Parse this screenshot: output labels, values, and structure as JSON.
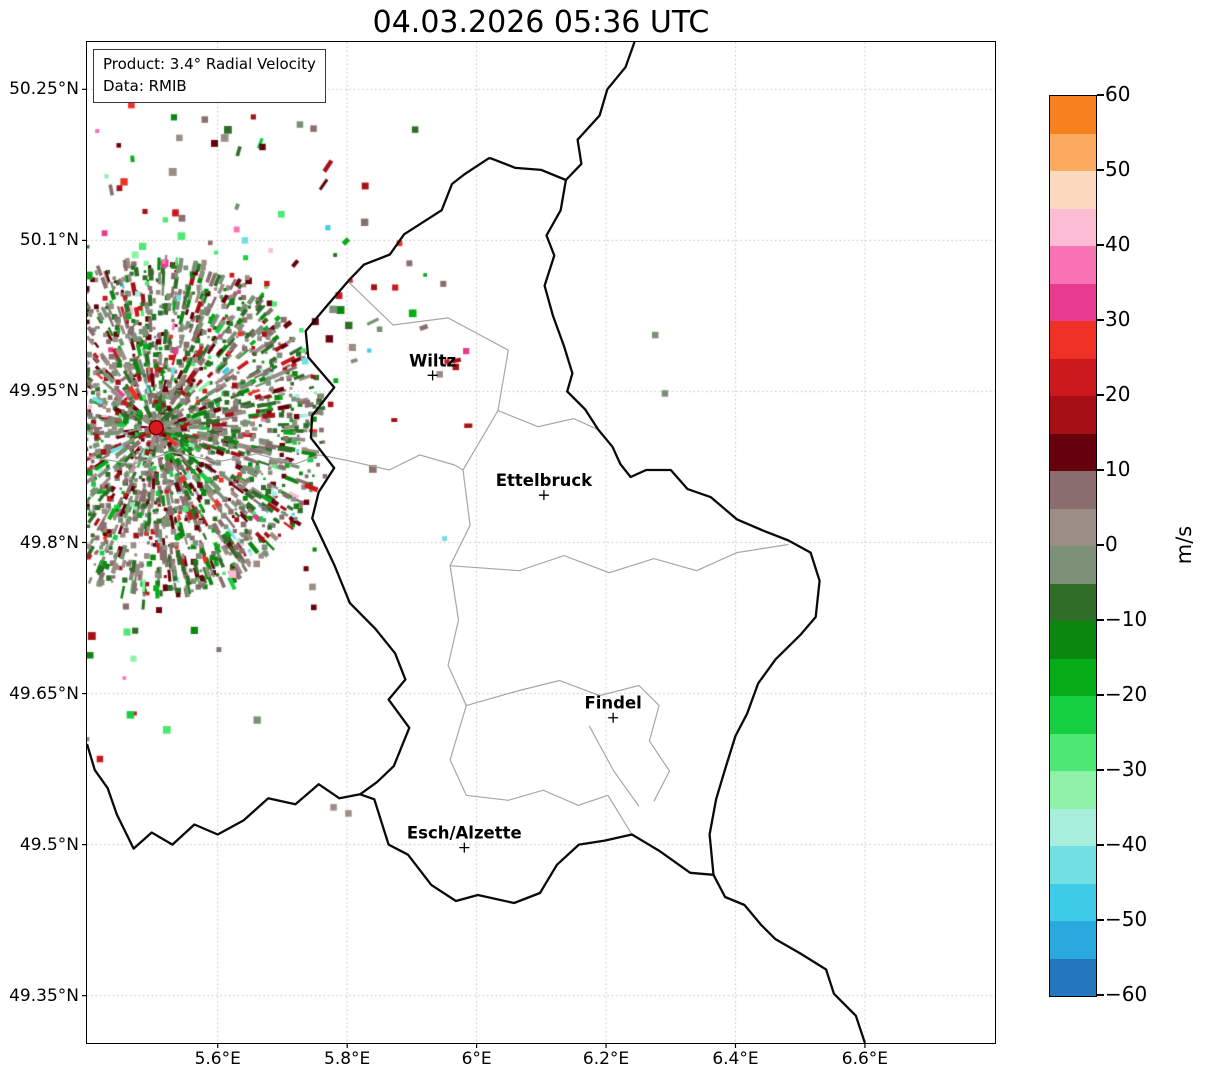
{
  "title": "04.03.2026 05:36 UTC",
  "info_box": {
    "line1": "Product: 3.4° Radial Velocity",
    "line2": "Data: RMIB"
  },
  "chart_data": {
    "type": "heatmap",
    "title": "04.03.2026 05:36 UTC",
    "product": "3.4° Radial Velocity",
    "data_source": "RMIB",
    "units": "m/s",
    "grid": true,
    "lon_range": [
      5.398,
      6.801
    ],
    "lat_range": [
      49.303,
      50.297
    ],
    "x_ticks": {
      "values": [
        5.6,
        5.8,
        6.0,
        6.2,
        6.4,
        6.6
      ],
      "labels": [
        "5.6°E",
        "5.8°E",
        "6°E",
        "6.2°E",
        "6.4°E",
        "6.6°E"
      ]
    },
    "y_ticks": {
      "values": [
        50.25,
        50.1,
        49.95,
        49.8,
        49.65,
        49.5,
        49.35
      ],
      "labels": [
        "50.25°N",
        "50.1°N",
        "49.95°N",
        "49.8°N",
        "49.65°N",
        "49.5°N",
        "49.35°N"
      ]
    },
    "colorbar": {
      "min": -60,
      "max": 60,
      "label": "m/s",
      "tick_values": [
        60,
        50,
        40,
        30,
        20,
        10,
        0,
        -10,
        -20,
        -30,
        -40,
        -50,
        -60
      ],
      "tick_labels": [
        "60",
        "50",
        "40",
        "30",
        "20",
        "10",
        "0",
        "−10",
        "−20",
        "−30",
        "−40",
        "−50",
        "−60"
      ],
      "bin_size": 5,
      "colors": [
        "#2277bd",
        "#29a9de",
        "#3ecbe8",
        "#72dfe4",
        "#a8eedd",
        "#8df2a7",
        "#4de873",
        "#15cf40",
        "#06ab18",
        "#0b8710",
        "#2f6d28",
        "#7b9077",
        "#9a8d85",
        "#8a6e6e",
        "#67000d",
        "#a50f15",
        "#cb181d",
        "#ee3124",
        "#e83a8e",
        "#f873b3",
        "#fbbcd4",
        "#fdd9c0",
        "#fcaa5f",
        "#f8811f"
      ]
    },
    "radar": {
      "name": "radar-site",
      "lon": 5.505,
      "lat": 49.914,
      "dot_color": "#d7191c"
    },
    "cities": [
      {
        "name": "Wiltz",
        "lon": 5.932,
        "lat": 49.966
      },
      {
        "name": "Ettelbruck",
        "lon": 6.104,
        "lat": 49.847
      },
      {
        "name": "Findel",
        "lon": 6.211,
        "lat": 49.626
      },
      {
        "name": "Esch/Alzette",
        "lon": 5.981,
        "lat": 49.497
      }
    ],
    "borders": {
      "country": [
        [
          [
            6.02,
            50.182
          ],
          [
            6.06,
            50.172
          ],
          [
            6.1,
            50.17
          ],
          [
            6.138,
            50.16
          ],
          [
            6.13,
            50.13
          ],
          [
            6.108,
            50.105
          ],
          [
            6.12,
            50.085
          ],
          [
            6.105,
            50.055
          ],
          [
            6.118,
            50.025
          ],
          [
            6.135,
            49.995
          ],
          [
            6.148,
            49.968
          ],
          [
            6.14,
            49.95
          ],
          [
            6.168,
            49.932
          ],
          [
            6.188,
            49.912
          ],
          [
            6.21,
            49.895
          ],
          [
            6.222,
            49.878
          ],
          [
            6.238,
            49.865
          ],
          [
            6.262,
            49.872
          ],
          [
            6.3,
            49.872
          ],
          [
            6.326,
            49.853
          ],
          [
            6.362,
            49.845
          ],
          [
            6.402,
            49.823
          ],
          [
            6.442,
            49.812
          ],
          [
            6.482,
            49.802
          ],
          [
            6.516,
            49.79
          ],
          [
            6.53,
            49.762
          ],
          [
            6.524,
            49.726
          ],
          [
            6.5,
            49.708
          ],
          [
            6.462,
            49.684
          ],
          [
            6.435,
            49.66
          ],
          [
            6.418,
            49.63
          ],
          [
            6.4,
            49.608
          ],
          [
            6.384,
            49.575
          ],
          [
            6.37,
            49.545
          ],
          [
            6.36,
            49.51
          ],
          [
            6.366,
            49.47
          ],
          [
            6.33,
            49.472
          ],
          [
            6.282,
            49.494
          ],
          [
            6.24,
            49.51
          ],
          [
            6.198,
            49.504
          ],
          [
            6.158,
            49.5
          ],
          [
            6.124,
            49.48
          ],
          [
            6.098,
            49.452
          ],
          [
            6.058,
            49.442
          ],
          [
            6.002,
            49.45
          ],
          [
            5.968,
            49.444
          ],
          [
            5.93,
            49.46
          ],
          [
            5.894,
            49.49
          ],
          [
            5.864,
            49.5
          ],
          [
            5.842,
            49.545
          ],
          [
            5.82,
            49.55
          ],
          [
            5.846,
            49.562
          ],
          [
            5.872,
            49.578
          ],
          [
            5.896,
            49.616
          ],
          [
            5.864,
            49.644
          ],
          [
            5.89,
            49.664
          ],
          [
            5.874,
            49.69
          ],
          [
            5.844,
            49.714
          ],
          [
            5.804,
            49.74
          ],
          [
            5.78,
            49.778
          ],
          [
            5.746,
            49.824
          ],
          [
            5.756,
            49.85
          ],
          [
            5.78,
            49.874
          ],
          [
            5.744,
            49.904
          ],
          [
            5.746,
            49.926
          ],
          [
            5.78,
            49.954
          ],
          [
            5.74,
            49.984
          ],
          [
            5.736,
            50.01
          ],
          [
            5.77,
            50.036
          ],
          [
            5.802,
            50.06
          ],
          [
            5.826,
            50.076
          ],
          [
            5.866,
            50.086
          ],
          [
            5.888,
            50.106
          ],
          [
            5.912,
            50.116
          ],
          [
            5.946,
            50.13
          ],
          [
            5.962,
            50.156
          ],
          [
            5.982,
            50.166
          ],
          [
            6.02,
            50.182
          ]
        ],
        [
          [
            6.138,
            50.16
          ],
          [
            6.162,
            50.176
          ],
          [
            6.156,
            50.2
          ],
          [
            6.19,
            50.224
          ],
          [
            6.202,
            50.25
          ],
          [
            6.23,
            50.272
          ],
          [
            6.244,
            50.297
          ]
        ],
        [
          [
            6.366,
            49.47
          ],
          [
            6.384,
            49.448
          ],
          [
            6.414,
            49.44
          ],
          [
            6.44,
            49.42
          ],
          [
            6.462,
            49.406
          ],
          [
            6.5,
            49.392
          ],
          [
            6.54,
            49.376
          ],
          [
            6.552,
            49.352
          ],
          [
            6.586,
            49.33
          ],
          [
            6.6,
            49.303
          ]
        ],
        [
          [
            5.82,
            49.55
          ],
          [
            5.788,
            49.546
          ],
          [
            5.756,
            49.56
          ],
          [
            5.72,
            49.54
          ],
          [
            5.678,
            49.546
          ],
          [
            5.64,
            49.524
          ],
          [
            5.6,
            49.51
          ],
          [
            5.564,
            49.52
          ],
          [
            5.53,
            49.5
          ],
          [
            5.498,
            49.512
          ],
          [
            5.47,
            49.496
          ],
          [
            5.444,
            49.53
          ],
          [
            5.43,
            49.556
          ],
          [
            5.41,
            49.574
          ],
          [
            5.398,
            49.6
          ]
        ]
      ],
      "districts": [
        [
          [
            5.398,
            49.885
          ],
          [
            5.47,
            49.878
          ],
          [
            5.53,
            49.89
          ],
          [
            5.6,
            49.88
          ],
          [
            5.66,
            49.888
          ],
          [
            5.72,
            49.878
          ],
          [
            5.757,
            49.887
          ],
          [
            5.811,
            49.88
          ],
          [
            5.865,
            49.872
          ],
          [
            5.912,
            49.887
          ],
          [
            5.966,
            49.877
          ]
        ],
        [
          [
            5.956,
            50.023
          ],
          [
            6.049,
            49.991
          ],
          [
            6.033,
            49.931
          ],
          [
            5.979,
            49.872
          ],
          [
            5.99,
            49.817
          ],
          [
            5.959,
            49.777
          ],
          [
            5.972,
            49.723
          ],
          [
            5.956,
            49.678
          ],
          [
            5.984,
            49.638
          ],
          [
            5.959,
            49.584
          ],
          [
            5.984,
            49.549
          ]
        ],
        [
          [
            5.8,
            50.06
          ],
          [
            5.871,
            50.016
          ],
          [
            5.956,
            50.023
          ]
        ],
        [
          [
            5.959,
            49.777
          ],
          [
            6.066,
            49.772
          ],
          [
            6.135,
            49.787
          ],
          [
            6.205,
            49.77
          ],
          [
            6.274,
            49.784
          ],
          [
            6.34,
            49.772
          ],
          [
            6.402,
            49.79
          ],
          [
            6.482,
            49.798
          ]
        ],
        [
          [
            5.984,
            49.638
          ],
          [
            6.066,
            49.653
          ],
          [
            6.128,
            49.663
          ],
          [
            6.19,
            49.648
          ],
          [
            6.251,
            49.658
          ],
          [
            6.282,
            49.638
          ],
          [
            6.267,
            49.603
          ],
          [
            6.298,
            49.573
          ],
          [
            6.274,
            49.543
          ]
        ],
        [
          [
            6.174,
            49.618
          ],
          [
            6.212,
            49.573
          ],
          [
            6.251,
            49.538
          ]
        ],
        [
          [
            5.984,
            49.549
          ],
          [
            6.049,
            49.544
          ],
          [
            6.103,
            49.554
          ],
          [
            6.157,
            49.539
          ],
          [
            6.203,
            49.549
          ],
          [
            6.24,
            49.51
          ]
        ],
        [
          [
            6.033,
            49.931
          ],
          [
            6.095,
            49.915
          ],
          [
            6.15,
            49.923
          ],
          [
            6.188,
            49.912
          ]
        ],
        [
          [
            5.979,
            49.872
          ],
          [
            5.966,
            49.877
          ]
        ]
      ]
    },
    "far_cells": [
      [
        6.276,
        50.006,
        -3
      ],
      [
        6.291,
        49.948,
        -4
      ],
      [
        5.943,
        49.967,
        3
      ],
      [
        5.58,
        50.22,
        7
      ],
      [
        5.727,
        50.215,
        -4
      ],
      [
        5.748,
        50.211,
        9
      ],
      [
        5.905,
        50.21,
        -6
      ],
      [
        5.642,
        50.1,
        -44
      ],
      [
        5.735,
        49.98,
        -42
      ],
      [
        5.779,
        49.537,
        2
      ],
      [
        5.802,
        49.531,
        3
      ],
      [
        5.418,
        49.585,
        24
      ],
      [
        5.403,
        49.688,
        -12
      ]
    ],
    "speckle": {
      "seed": 1337,
      "core_count": 2800,
      "core_radius_px": 168,
      "outer_count": 240,
      "outer_radius_px": 330
    }
  }
}
